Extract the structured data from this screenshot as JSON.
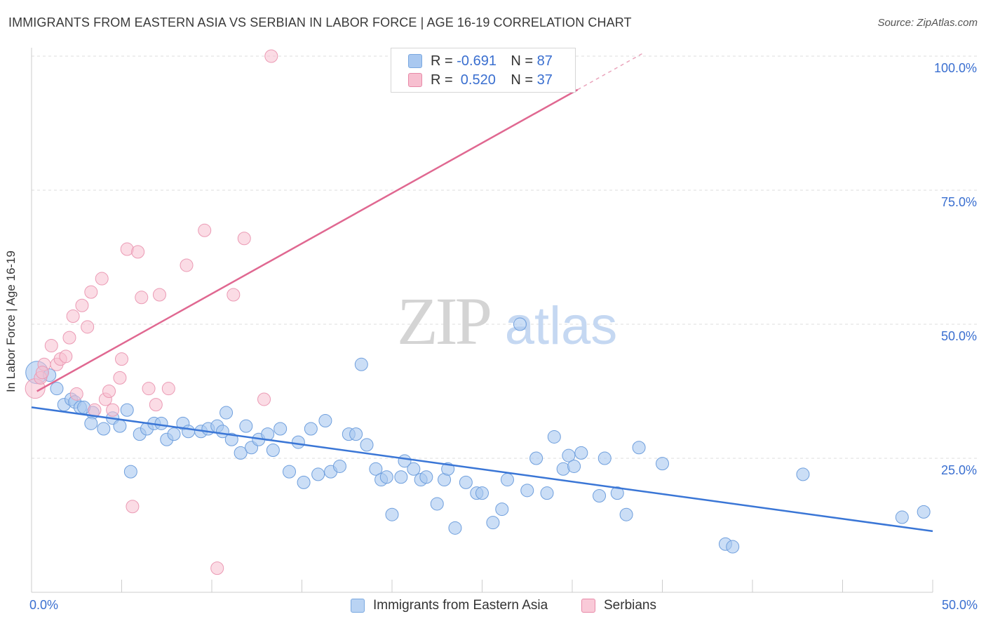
{
  "title": "IMMIGRANTS FROM EASTERN ASIA VS SERBIAN IN LABOR FORCE | AGE 16-19 CORRELATION CHART",
  "source": "Source: ZipAtlas.com",
  "watermark": {
    "zip": "ZIP",
    "atlas": "atlas"
  },
  "legend": {
    "rows": [
      {
        "r_label": "R =",
        "r_value": "-0.691",
        "n_label": "N =",
        "n_value": "87",
        "color": "#a9c8f0",
        "border": "#7aa8e0"
      },
      {
        "r_label": "R =",
        "r_value": " 0.520",
        "n_label": "N =",
        "n_value": "37",
        "color": "#f7bfd0",
        "border": "#e88aa8"
      }
    ]
  },
  "bottom_legend": [
    {
      "label": "Immigrants from Eastern Asia",
      "color": "#b9d3f3",
      "border": "#7aa8e0"
    },
    {
      "label": "Serbians",
      "color": "#f9cad8",
      "border": "#e88aa8"
    }
  ],
  "colors": {
    "blue": "#3a76d6",
    "blue_fill": "#a9c8f0",
    "pink": "#e06891",
    "pink_fill": "#f7bfd0",
    "tick_text": "#3a6fd0",
    "grid": "#dcdcdc"
  },
  "chart_data": {
    "type": "scatter",
    "title": "IMMIGRANTS FROM EASTERN ASIA VS SERBIAN IN LABOR FORCE | AGE 16-19 CORRELATION CHART",
    "xlabel": "",
    "ylabel": "In Labor Force | Age 16-19",
    "xlim": [
      0,
      50
    ],
    "ylim": [
      0,
      102
    ],
    "x_ticks": [
      "0.0%",
      "50.0%"
    ],
    "y_ticks": [
      {
        "value": 25,
        "label": "25.0%"
      },
      {
        "value": 50,
        "label": "50.0%"
      },
      {
        "value": 75,
        "label": "75.0%"
      },
      {
        "value": 100,
        "label": "100.0%"
      }
    ],
    "grid": true,
    "legend_position": "top-center",
    "series": [
      {
        "name": "Immigrants from Eastern Asia",
        "color": "#3a76d6",
        "trend": {
          "x": [
            0,
            50
          ],
          "y": [
            34.5,
            11.4
          ]
        },
        "points": [
          [
            0.3,
            41.0
          ],
          [
            1.0,
            40.5
          ],
          [
            1.4,
            38.0
          ],
          [
            1.8,
            35.0
          ],
          [
            2.2,
            36.0
          ],
          [
            2.4,
            35.5
          ],
          [
            2.7,
            34.5
          ],
          [
            3.4,
            33.5
          ],
          [
            3.3,
            31.5
          ],
          [
            4.0,
            30.5
          ],
          [
            4.5,
            32.5
          ],
          [
            4.9,
            31.0
          ],
          [
            5.3,
            34.0
          ],
          [
            5.5,
            22.5
          ],
          [
            6.0,
            29.5
          ],
          [
            6.4,
            30.5
          ],
          [
            6.8,
            31.5
          ],
          [
            7.2,
            31.5
          ],
          [
            7.5,
            28.5
          ],
          [
            7.9,
            29.5
          ],
          [
            8.4,
            31.5
          ],
          [
            8.7,
            30.0
          ],
          [
            9.4,
            30.0
          ],
          [
            9.8,
            30.5
          ],
          [
            10.3,
            31.0
          ],
          [
            10.6,
            30.0
          ],
          [
            10.8,
            33.5
          ],
          [
            11.1,
            28.5
          ],
          [
            11.6,
            26.0
          ],
          [
            11.9,
            31.0
          ],
          [
            12.2,
            27.0
          ],
          [
            12.6,
            28.5
          ],
          [
            13.1,
            29.5
          ],
          [
            13.4,
            26.5
          ],
          [
            13.8,
            30.5
          ],
          [
            14.3,
            22.5
          ],
          [
            14.8,
            28.0
          ],
          [
            15.1,
            20.5
          ],
          [
            15.5,
            30.5
          ],
          [
            15.9,
            22.0
          ],
          [
            16.3,
            32.0
          ],
          [
            16.6,
            22.5
          ],
          [
            17.1,
            23.5
          ],
          [
            17.6,
            29.5
          ],
          [
            18.0,
            29.5
          ],
          [
            18.3,
            42.5
          ],
          [
            18.6,
            27.5
          ],
          [
            19.1,
            23.0
          ],
          [
            19.4,
            21.0
          ],
          [
            19.7,
            21.5
          ],
          [
            20.0,
            14.5
          ],
          [
            20.5,
            21.5
          ],
          [
            20.7,
            24.5
          ],
          [
            21.2,
            23.0
          ],
          [
            21.6,
            21.0
          ],
          [
            21.9,
            21.5
          ],
          [
            22.5,
            16.5
          ],
          [
            22.9,
            21.0
          ],
          [
            23.1,
            23.0
          ],
          [
            23.5,
            12.0
          ],
          [
            24.1,
            20.5
          ],
          [
            24.7,
            18.5
          ],
          [
            25.0,
            18.5
          ],
          [
            25.6,
            13.0
          ],
          [
            26.1,
            15.5
          ],
          [
            26.4,
            21.0
          ],
          [
            27.1,
            50.0
          ],
          [
            27.5,
            19.0
          ],
          [
            28.0,
            25.0
          ],
          [
            28.6,
            18.5
          ],
          [
            29.0,
            29.0
          ],
          [
            29.5,
            23.0
          ],
          [
            29.8,
            25.5
          ],
          [
            30.1,
            23.5
          ],
          [
            30.5,
            26.0
          ],
          [
            31.5,
            18.0
          ],
          [
            31.8,
            25.0
          ],
          [
            32.5,
            18.5
          ],
          [
            33.0,
            14.5
          ],
          [
            33.7,
            27.0
          ],
          [
            35.0,
            24.0
          ],
          [
            38.5,
            9.0
          ],
          [
            38.9,
            8.5
          ],
          [
            42.8,
            22.0
          ],
          [
            48.3,
            14.0
          ],
          [
            49.5,
            15.0
          ],
          [
            2.9,
            34.5
          ]
        ]
      },
      {
        "name": "Serbians",
        "color": "#e06891",
        "trend": {
          "x": [
            0.3,
            33.9
          ],
          "y": [
            37.5,
            100.5
          ],
          "dash_start": 30.3
        },
        "points": [
          [
            0.2,
            38.0
          ],
          [
            0.5,
            40.0
          ],
          [
            0.7,
            42.5
          ],
          [
            1.1,
            46.0
          ],
          [
            1.4,
            42.5
          ],
          [
            1.6,
            43.5
          ],
          [
            1.9,
            44.0
          ],
          [
            2.1,
            47.5
          ],
          [
            2.3,
            51.5
          ],
          [
            2.5,
            37.0
          ],
          [
            2.8,
            53.5
          ],
          [
            3.1,
            49.5
          ],
          [
            3.3,
            56.0
          ],
          [
            3.5,
            34.0
          ],
          [
            3.9,
            58.5
          ],
          [
            4.1,
            36.0
          ],
          [
            4.3,
            37.5
          ],
          [
            4.5,
            34.0
          ],
          [
            4.9,
            40.0
          ],
          [
            5.0,
            43.5
          ],
          [
            5.3,
            64.0
          ],
          [
            5.6,
            16.0
          ],
          [
            5.9,
            63.5
          ],
          [
            6.1,
            55.0
          ],
          [
            6.5,
            38.0
          ],
          [
            6.9,
            35.0
          ],
          [
            7.1,
            55.5
          ],
          [
            7.6,
            38.0
          ],
          [
            8.6,
            61.0
          ],
          [
            9.6,
            67.5
          ],
          [
            10.3,
            4.5
          ],
          [
            11.2,
            55.5
          ],
          [
            11.8,
            66.0
          ],
          [
            12.9,
            36.0
          ],
          [
            13.3,
            100.0
          ],
          [
            26.3,
            100.0
          ],
          [
            0.6,
            41.0
          ]
        ]
      }
    ]
  }
}
